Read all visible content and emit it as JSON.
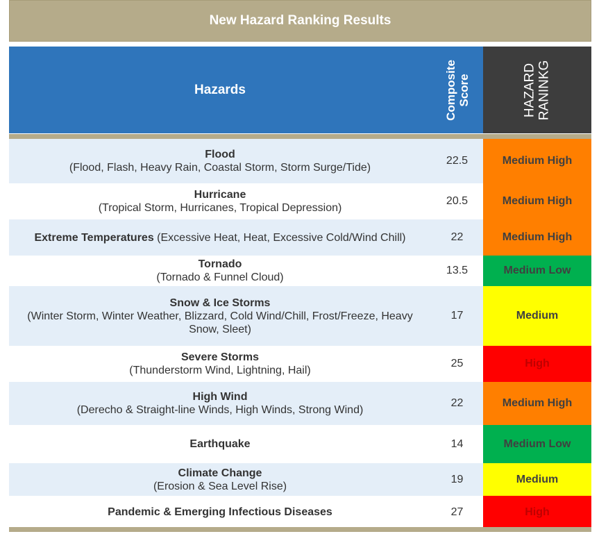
{
  "title": "New Hazard Ranking Results",
  "headers": {
    "hazards": "Hazards",
    "score": "Composite\nScore",
    "rank": "HAZARD\nRANINKG"
  },
  "rank_colors": {
    "Medium High": "#ff7f00",
    "Medium Low": "#00b04f",
    "Medium": "#ffff00",
    "High": "#ff0000"
  },
  "rows": [
    {
      "name": "Flood",
      "detail": "(Flood, Flash, Heavy Rain, Coastal Storm, Storm Surge/Tide)",
      "inline": false,
      "score": "22.5",
      "rank": "Medium High"
    },
    {
      "name": "Hurricane",
      "detail": "(Tropical Storm, Hurricanes, Tropical Depression)",
      "inline": false,
      "score": "20.5",
      "rank": "Medium High"
    },
    {
      "name": "Extreme Temperatures",
      "detail": " (Excessive Heat, Heat, Excessive Cold/Wind Chill)",
      "inline": true,
      "score": "22",
      "rank": "Medium High"
    },
    {
      "name": "Tornado",
      "detail": "(Tornado & Funnel Cloud)",
      "inline": false,
      "score": "13.5",
      "rank": "Medium Low"
    },
    {
      "name": "Snow & Ice Storms",
      "detail": "(Winter Storm, Winter Weather, Blizzard, Cold Wind/Chill, Frost/Freeze, Heavy Snow, Sleet)",
      "inline": false,
      "score": "17",
      "rank": "Medium"
    },
    {
      "name": "Severe Storms",
      "detail": "(Thunderstorm Wind, Lightning, Hail)",
      "inline": false,
      "score": "25",
      "rank": "High"
    },
    {
      "name": "High Wind",
      "detail": "(Derecho & Straight-line Winds, High Winds, Strong Wind)",
      "inline": false,
      "score": "22",
      "rank": "Medium High"
    },
    {
      "name": "Earthquake",
      "detail": "",
      "inline": false,
      "score": "14",
      "rank": "Medium Low"
    },
    {
      "name": "Climate Change",
      "detail": "(Erosion & Sea Level Rise)",
      "inline": false,
      "score": "19",
      "rank": "Medium"
    },
    {
      "name": "Pandemic & Emerging Infectious Diseases",
      "detail": "",
      "inline": false,
      "score": "27",
      "rank": "High"
    }
  ]
}
